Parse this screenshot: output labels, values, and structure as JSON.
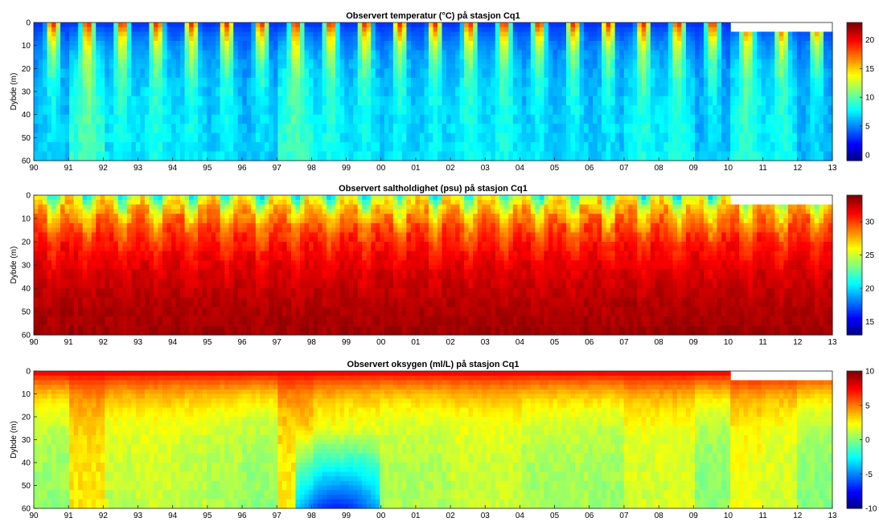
{
  "chart_data": [
    {
      "type": "heatmap",
      "title": "Observert temperatur (°C) på stasjon Cq1",
      "xlabel": "",
      "ylabel": "Dybde (m)",
      "x_tick_labels": [
        "90",
        "91",
        "92",
        "93",
        "94",
        "95",
        "96",
        "97",
        "98",
        "99",
        "00",
        "01",
        "02",
        "03",
        "04",
        "05",
        "06",
        "07",
        "08",
        "09",
        "10",
        "11",
        "12",
        "13"
      ],
      "x_range": [
        1990,
        2013
      ],
      "y_ticks": [
        0,
        10,
        20,
        30,
        40,
        50,
        60
      ],
      "y_range": [
        0,
        60
      ],
      "y_reversed": true,
      "colorbar": {
        "ticks": [
          0,
          5,
          10,
          15,
          20
        ],
        "range": [
          -1,
          23
        ],
        "colormap": "jet"
      },
      "pattern": {
        "surface_summer": 20,
        "surface_winter": 3,
        "deep": 8,
        "surface_layer_depth_m": 12,
        "missing_surface_after": 2010,
        "missing_surface_depth_m": 4
      }
    },
    {
      "type": "heatmap",
      "title": "Observert saltholdighet (psu) på stasjon Cq1",
      "xlabel": "",
      "ylabel": "Dybde (m)",
      "x_tick_labels": [
        "90",
        "91",
        "92",
        "93",
        "94",
        "95",
        "96",
        "97",
        "98",
        "99",
        "00",
        "01",
        "02",
        "03",
        "04",
        "05",
        "06",
        "07",
        "08",
        "09",
        "10",
        "11",
        "12",
        "13"
      ],
      "x_range": [
        1990,
        2013
      ],
      "y_ticks": [
        0,
        10,
        20,
        30,
        40,
        50,
        60
      ],
      "y_range": [
        0,
        60
      ],
      "y_reversed": true,
      "colorbar": {
        "ticks": [
          15,
          20,
          25,
          30
        ],
        "range": [
          13,
          34
        ],
        "colormap": "jet"
      },
      "pattern": {
        "surface_low": 20,
        "deep": 33.5,
        "surface_layer_depth_m": 15,
        "missing_surface_after": 2010,
        "missing_surface_depth_m": 4
      }
    },
    {
      "type": "heatmap",
      "title": "Observert oksygen (ml/L) på stasjon Cq1",
      "xlabel": "",
      "ylabel": "Dybde (m)",
      "x_tick_labels": [
        "90",
        "91",
        "92",
        "93",
        "94",
        "95",
        "96",
        "97",
        "98",
        "99",
        "00",
        "01",
        "02",
        "03",
        "04",
        "05",
        "06",
        "07",
        "08",
        "09",
        "10",
        "11",
        "12",
        "13"
      ],
      "x_range": [
        1990,
        2013
      ],
      "y_ticks": [
        0,
        10,
        20,
        30,
        40,
        50,
        60
      ],
      "y_range": [
        0,
        60
      ],
      "y_reversed": true,
      "colorbar": {
        "ticks": [
          -10,
          -5,
          0,
          5,
          10
        ],
        "range": [
          -10,
          10
        ],
        "colormap": "jet"
      },
      "pattern": {
        "surface": 8,
        "deep": 1.5,
        "surface_layer_depth_m": 12,
        "low_oxygen_min": -7,
        "low_oxygen_period": [
          1997.5,
          2000
        ],
        "missing_surface_after": 2010,
        "missing_surface_depth_m": 4
      }
    }
  ]
}
